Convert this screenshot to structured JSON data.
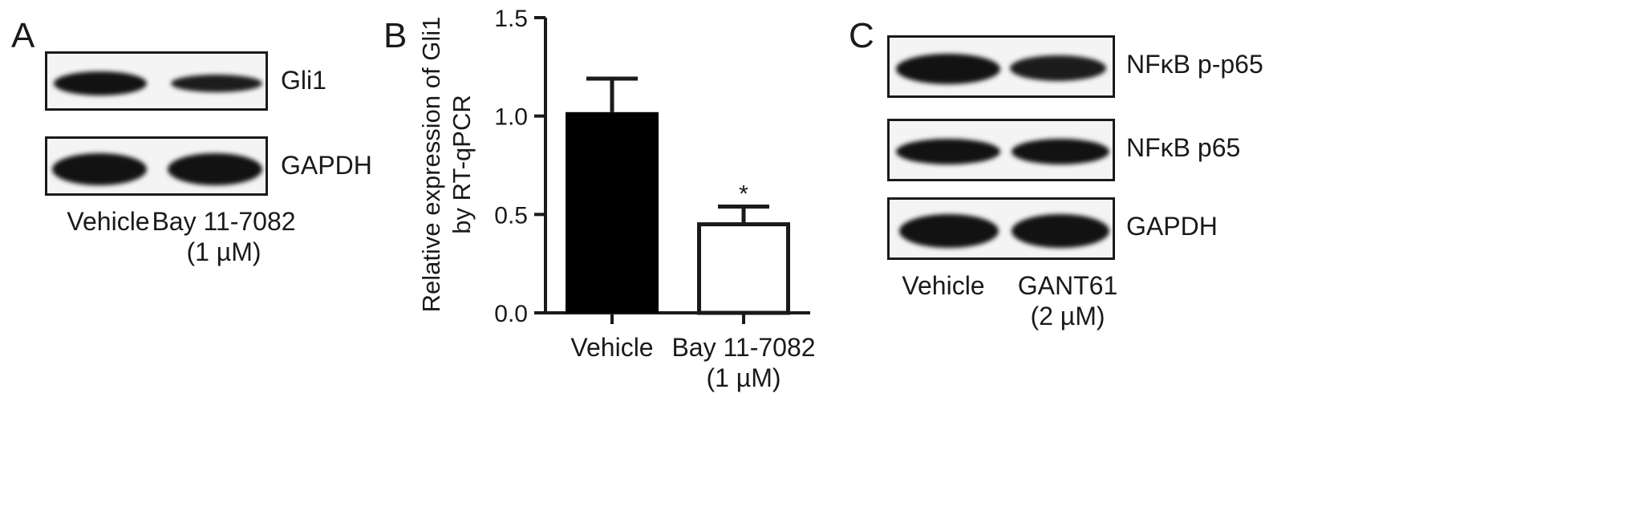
{
  "panels": {
    "a": {
      "letter": "A",
      "blots": [
        "Gli1",
        "GAPDH"
      ],
      "lanes": {
        "lane1": "Vehicle",
        "lane2": "Bay 11-7082",
        "lane2_dose": "(1 µM)"
      }
    },
    "b": {
      "letter": "B"
    },
    "c": {
      "letter": "C",
      "blots": [
        "NFκB p-p65",
        "NFκB p65",
        "GAPDH"
      ],
      "lanes": {
        "lane1": "Vehicle",
        "lane2": "GANT61",
        "lane2_dose": "(2 µM)"
      }
    }
  },
  "chart_data": {
    "type": "bar",
    "categories": [
      "Vehicle",
      "Bay 11-7082"
    ],
    "category_sublabels": [
      "",
      "(1 µM)"
    ],
    "values": [
      1.02,
      0.45
    ],
    "error": [
      0.17,
      0.09
    ],
    "bar_fill": [
      "#000000",
      "#ffffff"
    ],
    "annotations": [
      "",
      "*"
    ],
    "ylabel_lines": [
      "Relative expression of Gli1",
      "by RT-qPCR"
    ],
    "ylim": [
      0,
      1.5
    ],
    "yticks": [
      "0.0",
      "0.5",
      "1.0",
      "1.5"
    ],
    "ytick_values": [
      0,
      0.5,
      1.0,
      1.5
    ],
    "grid": false
  }
}
